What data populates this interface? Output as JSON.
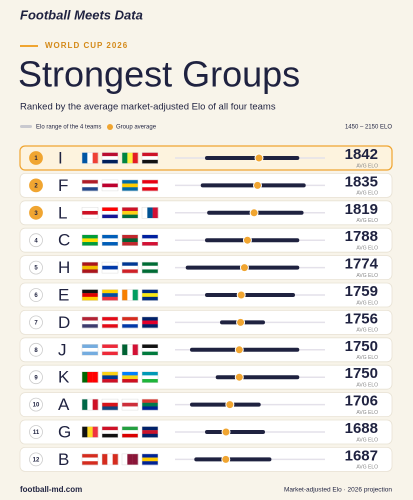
{
  "header": {
    "brand": "Football Meets Data",
    "kicker": "WORLD CUP 2026"
  },
  "chart_data": {
    "type": "range-dot",
    "title": "Strongest Groups",
    "subtitle": "Ranked by the average market-adjusted Elo of all four teams",
    "legend": {
      "range": "Elo range of the 4 teams",
      "average": "Group average"
    },
    "range_label": "1450 – 2150 ELO",
    "value_label": "AVG ELO",
    "xlim": [
      1450,
      2150
    ],
    "ranks": [
      1,
      2,
      3,
      4,
      5,
      6,
      7,
      8,
      9,
      10,
      11,
      12
    ],
    "categories": [
      "I",
      "F",
      "L",
      "C",
      "H",
      "E",
      "D",
      "J",
      "K",
      "A",
      "G",
      "B"
    ],
    "values": [
      1842,
      1835,
      1819,
      1788,
      1774,
      1759,
      1756,
      1750,
      1750,
      1706,
      1688,
      1687
    ],
    "min": [
      1590,
      1570,
      1600,
      1590,
      1500,
      1590,
      1660,
      1520,
      1640,
      1520,
      1590,
      1540
    ],
    "max": [
      2030,
      2060,
      2050,
      2030,
      2030,
      2010,
      1870,
      2030,
      2030,
      1850,
      1870,
      1900
    ],
    "range_color": "#1f2240",
    "average_color": "#f0a531"
  },
  "footer": {
    "site": "football-md.com",
    "note": "Market-adjusted Elo · 2026 projection"
  }
}
